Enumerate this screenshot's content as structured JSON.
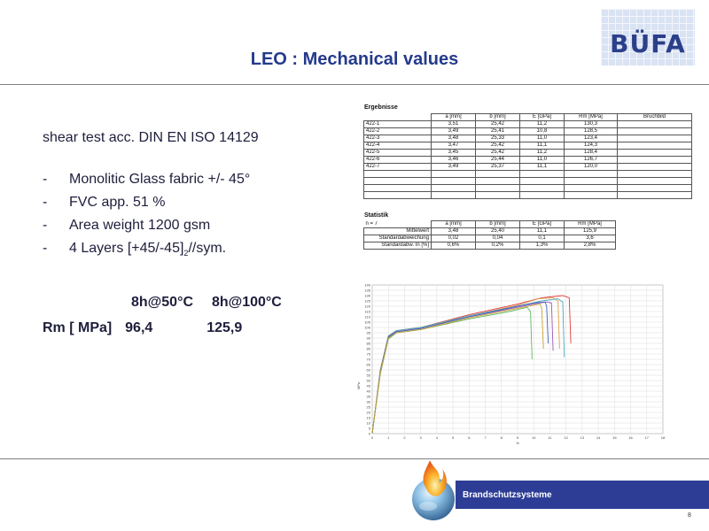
{
  "brand": {
    "logo_text": "BÜFA",
    "tagline": "Brandschutzsysteme"
  },
  "title": "LEO : Mechanical  values",
  "intro": "shear test acc. DIN EN ISO 14129",
  "bullets": [
    {
      "dash": "-",
      "text": "Monolitic Glass fabric +/- 45°"
    },
    {
      "dash": "-",
      "text": "FVC app. 51 %"
    },
    {
      "dash": "-",
      "text": "Area weight 1200 gsm"
    },
    {
      "dash": "-",
      "text": "4 Layers   [+45/-45]",
      "sub": "2",
      "suffix": "//sym."
    }
  ],
  "conditions": {
    "c1": "8h@50°C",
    "c2": "8h@100°C"
  },
  "rm_row": {
    "label": "Rm [ MPa]",
    "v1": "96,4",
    "v2": "125,9"
  },
  "results": {
    "title": "Ergebnisse",
    "headers": [
      "",
      "a [mm]",
      "b [mm]",
      "E [GPa]",
      "Rm [MPa]",
      "Bruchbild"
    ],
    "rows": [
      [
        "422-1",
        "3,51",
        "25,42",
        "11,2",
        "130,3",
        ""
      ],
      [
        "422-2",
        "3,49",
        "25,41",
        "10,8",
        "128,5",
        ""
      ],
      [
        "422-3",
        "3,48",
        "25,33",
        "11,0",
        "123,4",
        ""
      ],
      [
        "422-4",
        "3,47",
        "25,42",
        "11,1",
        "124,3",
        ""
      ],
      [
        "422-5",
        "3,45",
        "25,42",
        "11,2",
        "128,4",
        ""
      ],
      [
        "422-6",
        "3,46",
        "25,44",
        "11,0",
        "126,7",
        ""
      ],
      [
        "422-7",
        "3,49",
        "25,37",
        "11,1",
        "120,0",
        ""
      ],
      [
        "",
        "",
        "",
        "",
        "",
        ""
      ],
      [
        "",
        "",
        "",
        "",
        "",
        ""
      ],
      [
        "",
        "",
        "",
        "",
        "",
        ""
      ],
      [
        "",
        "",
        "",
        "",
        "",
        ""
      ]
    ]
  },
  "statistics": {
    "title": "Statistik",
    "n_label": "n = 7",
    "headers": [
      "a [mm]",
      "b [mm]",
      "E [GPa]",
      "Rm [MPa]"
    ],
    "rows": [
      [
        "Mittelwert",
        "3,48",
        "25,40",
        "11,1",
        "125,9"
      ],
      [
        "Standardabweichung",
        "0,02",
        "0,04",
        "0,1",
        "3,6"
      ],
      [
        "Standardabw. In [%]",
        "0,6%",
        "0,2%",
        "1,3%",
        "2,8%"
      ]
    ]
  },
  "chart_data": {
    "type": "line",
    "title": "",
    "xlabel": "%",
    "ylabel": "MPa",
    "xlim": [
      0,
      18
    ],
    "ylim": [
      0,
      140
    ],
    "x_ticks": [
      0,
      1,
      2,
      3,
      4,
      5,
      6,
      7,
      8,
      9,
      10,
      11,
      12,
      13,
      14,
      15,
      16,
      17,
      18
    ],
    "y_ticks": [
      0,
      5,
      10,
      15,
      20,
      25,
      30,
      35,
      40,
      45,
      50,
      55,
      60,
      65,
      70,
      75,
      80,
      85,
      90,
      95,
      100,
      105,
      110,
      115,
      120,
      125,
      130,
      135,
      140
    ],
    "grid": true,
    "series": [
      {
        "color": "#e03c3c",
        "values": [
          [
            0,
            0
          ],
          [
            0.5,
            60
          ],
          [
            1.0,
            92
          ],
          [
            1.5,
            97
          ],
          [
            3,
            100
          ],
          [
            6,
            112
          ],
          [
            9,
            122
          ],
          [
            10.5,
            128
          ],
          [
            11.8,
            130
          ],
          [
            12.2,
            128
          ],
          [
            12.3,
            85
          ]
        ]
      },
      {
        "color": "#e0a050",
        "values": [
          [
            0,
            0
          ],
          [
            0.5,
            58
          ],
          [
            1.0,
            91
          ],
          [
            1.5,
            96
          ],
          [
            3,
            99
          ],
          [
            6,
            111
          ],
          [
            9,
            121
          ],
          [
            10.3,
            127
          ],
          [
            11.2,
            128
          ],
          [
            11.5,
            125
          ],
          [
            11.6,
            80
          ]
        ]
      },
      {
        "color": "#9a5ab8",
        "values": [
          [
            0,
            0
          ],
          [
            0.5,
            57
          ],
          [
            1.0,
            90
          ],
          [
            1.5,
            96
          ],
          [
            3,
            99
          ],
          [
            6,
            110
          ],
          [
            9,
            119
          ],
          [
            10.0,
            122
          ],
          [
            10.8,
            124
          ],
          [
            11.1,
            123
          ],
          [
            11.2,
            78
          ]
        ]
      },
      {
        "color": "#4aa8b8",
        "values": [
          [
            0,
            0
          ],
          [
            0.5,
            59
          ],
          [
            1.0,
            92
          ],
          [
            1.5,
            97
          ],
          [
            3,
            100
          ],
          [
            6,
            111
          ],
          [
            9,
            120
          ],
          [
            10.5,
            125
          ],
          [
            11.5,
            127
          ],
          [
            11.8,
            124
          ],
          [
            11.9,
            72
          ]
        ]
      },
      {
        "color": "#4060c0",
        "values": [
          [
            0,
            0
          ],
          [
            0.5,
            58
          ],
          [
            1.0,
            91
          ],
          [
            1.5,
            96
          ],
          [
            3,
            99
          ],
          [
            6,
            110
          ],
          [
            9,
            120
          ],
          [
            10.0,
            123
          ],
          [
            10.7,
            124
          ],
          [
            10.8,
            120
          ],
          [
            10.9,
            85
          ]
        ]
      },
      {
        "color": "#60b860",
        "values": [
          [
            0,
            0
          ],
          [
            0.5,
            56
          ],
          [
            1.0,
            89
          ],
          [
            1.5,
            95
          ],
          [
            3,
            98
          ],
          [
            6,
            108
          ],
          [
            8.5,
            115
          ],
          [
            9.6,
            119
          ],
          [
            9.8,
            115
          ],
          [
            9.9,
            70
          ]
        ]
      },
      {
        "color": "#c8a030",
        "values": [
          [
            0,
            0
          ],
          [
            0.5,
            57
          ],
          [
            1.0,
            90
          ],
          [
            1.5,
            95
          ],
          [
            3,
            98
          ],
          [
            6,
            109
          ],
          [
            9,
            118
          ],
          [
            10.0,
            121
          ],
          [
            10.4,
            122
          ],
          [
            10.5,
            118
          ],
          [
            10.6,
            80
          ]
        ]
      }
    ]
  },
  "page_number": "8"
}
